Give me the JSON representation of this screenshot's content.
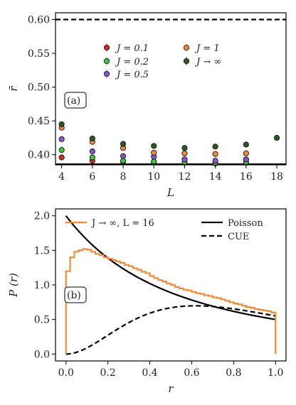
{
  "chart_data": [
    {
      "type": "scatter",
      "panel_label": "(a)",
      "xlabel": "L",
      "ylabel": "r̄",
      "xlim": [
        3.6,
        18.6
      ],
      "ylim": [
        0.385,
        0.61
      ],
      "xticks": [
        4,
        6,
        8,
        10,
        12,
        14,
        16,
        18
      ],
      "yticks": [
        0.4,
        0.45,
        0.5,
        0.55,
        0.6
      ],
      "ytick_labels": [
        "0.40",
        "0.45",
        "0.50",
        "0.55",
        "0.60"
      ],
      "hlines": [
        {
          "y": 0.6,
          "style": "dashed"
        },
        {
          "y": 0.386,
          "style": "solid"
        }
      ],
      "legend_columns": [
        [
          "J = 0.1",
          "J = 0.2",
          "J = 0.5"
        ],
        [
          "J = 1",
          "J → ∞"
        ]
      ],
      "series": [
        {
          "name": "J = 0.1",
          "color": "#d62a1e",
          "x": [
            4,
            6,
            8,
            10,
            12,
            14,
            16
          ],
          "values": [
            0.396,
            0.391,
            0.39,
            0.389,
            0.388,
            0.387,
            0.388
          ]
        },
        {
          "name": "J = 0.2",
          "color": "#3cc83c",
          "x": [
            4,
            6,
            8,
            10,
            12,
            14,
            16
          ],
          "values": [
            0.407,
            0.396,
            0.391,
            0.39,
            0.389,
            0.388,
            0.389
          ]
        },
        {
          "name": "J = 0.5",
          "color": "#8a55c8",
          "x": [
            4,
            6,
            8,
            10,
            12,
            14,
            16
          ],
          "values": [
            0.423,
            0.405,
            0.398,
            0.397,
            0.393,
            0.391,
            0.393
          ]
        },
        {
          "name": "J = 1",
          "color": "#f28c3c",
          "x": [
            4,
            6,
            8,
            10,
            12,
            14,
            16
          ],
          "values": [
            0.44,
            0.419,
            0.41,
            0.403,
            0.402,
            0.401,
            0.402
          ]
        },
        {
          "name": "J → ∞",
          "color": "#2e5a22",
          "x": [
            4,
            6,
            8,
            10,
            12,
            14,
            16,
            18
          ],
          "values": [
            0.445,
            0.424,
            0.416,
            0.413,
            0.41,
            0.412,
            0.415,
            0.425
          ]
        }
      ]
    },
    {
      "type": "line",
      "panel_label": "(b)",
      "xlabel": "r",
      "ylabel": "P (r)",
      "xlim": [
        -0.05,
        1.05
      ],
      "ylim": [
        -0.1,
        2.1
      ],
      "xticks": [
        0.0,
        0.2,
        0.4,
        0.6,
        0.8,
        1.0
      ],
      "xtick_labels": [
        "0.0",
        "0.2",
        "0.4",
        "0.6",
        "0.8",
        "1.0"
      ],
      "yticks": [
        0.0,
        0.5,
        1.0,
        1.5,
        2.0
      ],
      "ytick_labels": [
        "0.0",
        "0.5",
        "1.0",
        "1.5",
        "2.0"
      ],
      "legend": [
        "J → ∞, L = 16",
        "Poisson",
        "CUE"
      ],
      "series": [
        {
          "name": "J → ∞, L = 16",
          "color": "#f28c3c",
          "style": "step",
          "x": [
            0.0,
            0.02,
            0.04,
            0.06,
            0.08,
            0.1,
            0.12,
            0.14,
            0.16,
            0.18,
            0.2,
            0.22,
            0.24,
            0.26,
            0.28,
            0.3,
            0.32,
            0.34,
            0.36,
            0.38,
            0.4,
            0.42,
            0.44,
            0.46,
            0.48,
            0.5,
            0.52,
            0.54,
            0.56,
            0.58,
            0.6,
            0.62,
            0.64,
            0.66,
            0.68,
            0.7,
            0.72,
            0.74,
            0.76,
            0.78,
            0.8,
            0.82,
            0.84,
            0.86,
            0.88,
            0.9,
            0.92,
            0.94,
            0.96,
            0.98
          ],
          "values": [
            1.2,
            1.4,
            1.48,
            1.5,
            1.52,
            1.51,
            1.48,
            1.45,
            1.43,
            1.4,
            1.38,
            1.36,
            1.34,
            1.32,
            1.29,
            1.27,
            1.24,
            1.22,
            1.19,
            1.17,
            1.13,
            1.1,
            1.07,
            1.05,
            1.02,
            1.0,
            0.97,
            0.95,
            0.93,
            0.92,
            0.9,
            0.88,
            0.87,
            0.85,
            0.84,
            0.82,
            0.81,
            0.79,
            0.77,
            0.75,
            0.73,
            0.72,
            0.7,
            0.68,
            0.67,
            0.65,
            0.64,
            0.63,
            0.62,
            0.6
          ]
        },
        {
          "name": "Poisson",
          "color": "#000000",
          "style": "solid",
          "formula": "2/(1+r)^2"
        },
        {
          "name": "CUE",
          "color": "#000000",
          "style": "dashed",
          "formula": "(81*sqrt(3)/(4*pi)) * (r+r^2)^2 / (1+r+r^2)^4"
        }
      ]
    }
  ]
}
